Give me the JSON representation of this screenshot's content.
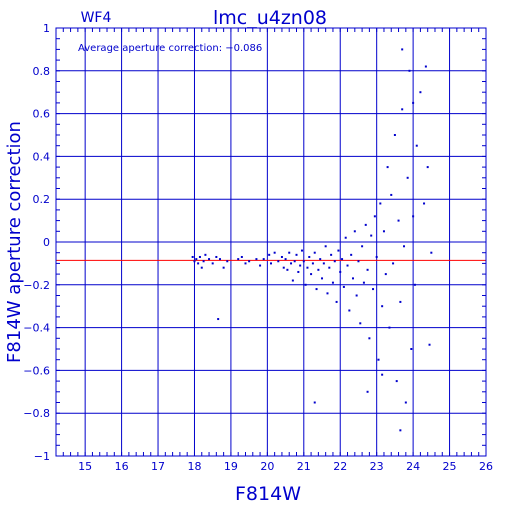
{
  "chart_data": {
    "type": "scatter",
    "title": "lmc_u4zn08",
    "subtitle": "WF4",
    "annotation": "Average aperture correction: −0.086",
    "xlabel": "F814W",
    "ylabel": "F814W aperture correction",
    "xlim": [
      14.2,
      26
    ],
    "ylim": [
      -1,
      1
    ],
    "xticks": [
      15,
      16,
      17,
      18,
      19,
      20,
      21,
      22,
      23,
      24,
      25,
      26
    ],
    "yticks": [
      -1,
      -0.8,
      -0.6,
      -0.4,
      -0.2,
      0,
      0.2,
      0.4,
      0.6,
      0.8,
      1
    ],
    "xtick_labels": [
      "15",
      "16",
      "17",
      "18",
      "19",
      "20",
      "21",
      "22",
      "23",
      "24",
      "25",
      "26"
    ],
    "ytick_labels": [
      "−1",
      "−0.8",
      "−0.6",
      "−0.4",
      "−0.2",
      "0",
      "0.2",
      "0.4",
      "0.6",
      "0.8",
      "1"
    ],
    "grid": true,
    "reference_line": {
      "y": -0.086,
      "color": "#ff0000"
    },
    "colors": {
      "axes": "#0000cc",
      "points": "#0000cc",
      "reference": "#ff0000"
    },
    "points": [
      [
        17.95,
        -0.07
      ],
      [
        18.0,
        -0.09
      ],
      [
        18.05,
        -0.08
      ],
      [
        18.1,
        -0.1
      ],
      [
        18.15,
        -0.07
      ],
      [
        18.2,
        -0.12
      ],
      [
        18.25,
        -0.09
      ],
      [
        18.3,
        -0.06
      ],
      [
        18.4,
        -0.08
      ],
      [
        18.5,
        -0.1
      ],
      [
        18.6,
        -0.07
      ],
      [
        18.7,
        -0.08
      ],
      [
        18.8,
        -0.12
      ],
      [
        18.9,
        -0.09
      ],
      [
        18.65,
        -0.36
      ],
      [
        19.2,
        -0.08
      ],
      [
        19.3,
        -0.07
      ],
      [
        19.4,
        -0.1
      ],
      [
        19.5,
        -0.09
      ],
      [
        19.7,
        -0.08
      ],
      [
        19.8,
        -0.11
      ],
      [
        19.9,
        -0.08
      ],
      [
        20.05,
        -0.06
      ],
      [
        20.1,
        -0.1
      ],
      [
        20.2,
        -0.05
      ],
      [
        20.3,
        -0.09
      ],
      [
        20.4,
        -0.07
      ],
      [
        20.45,
        -0.12
      ],
      [
        20.5,
        -0.08
      ],
      [
        20.55,
        -0.13
      ],
      [
        20.6,
        -0.05
      ],
      [
        20.65,
        -0.1
      ],
      [
        20.7,
        -0.18
      ],
      [
        20.75,
        -0.09
      ],
      [
        20.8,
        -0.06
      ],
      [
        20.85,
        -0.14
      ],
      [
        20.9,
        -0.11
      ],
      [
        20.95,
        -0.04
      ],
      [
        21.0,
        -0.09
      ],
      [
        21.05,
        -0.2
      ],
      [
        21.1,
        -0.12
      ],
      [
        21.15,
        -0.07
      ],
      [
        21.2,
        -0.15
      ],
      [
        21.25,
        -0.1
      ],
      [
        21.3,
        -0.05
      ],
      [
        21.35,
        -0.22
      ],
      [
        21.4,
        -0.13
      ],
      [
        21.45,
        -0.08
      ],
      [
        21.5,
        -0.17
      ],
      [
        21.55,
        -0.1
      ],
      [
        21.6,
        -0.02
      ],
      [
        21.65,
        -0.24
      ],
      [
        21.7,
        -0.12
      ],
      [
        21.75,
        -0.06
      ],
      [
        21.8,
        -0.19
      ],
      [
        21.85,
        -0.09
      ],
      [
        21.9,
        -0.28
      ],
      [
        21.95,
        -0.04
      ],
      [
        22.0,
        -0.14
      ],
      [
        22.05,
        -0.08
      ],
      [
        22.1,
        -0.21
      ],
      [
        22.15,
        0.02
      ],
      [
        22.2,
        -0.11
      ],
      [
        22.25,
        -0.32
      ],
      [
        22.3,
        -0.06
      ],
      [
        22.35,
        -0.17
      ],
      [
        22.4,
        0.05
      ],
      [
        22.45,
        -0.25
      ],
      [
        22.5,
        -0.09
      ],
      [
        22.55,
        -0.38
      ],
      [
        22.6,
        -0.02
      ],
      [
        22.65,
        -0.19
      ],
      [
        22.7,
        0.08
      ],
      [
        22.75,
        -0.13
      ],
      [
        22.8,
        -0.45
      ],
      [
        22.85,
        0.03
      ],
      [
        22.9,
        -0.22
      ],
      [
        22.95,
        0.12
      ],
      [
        23.0,
        -0.07
      ],
      [
        23.05,
        -0.55
      ],
      [
        23.1,
        0.18
      ],
      [
        23.15,
        -0.3
      ],
      [
        23.2,
        0.05
      ],
      [
        23.25,
        -0.15
      ],
      [
        23.3,
        0.35
      ],
      [
        23.35,
        -0.4
      ],
      [
        23.4,
        0.22
      ],
      [
        23.45,
        -0.1
      ],
      [
        23.5,
        0.5
      ],
      [
        23.55,
        -0.65
      ],
      [
        23.6,
        0.1
      ],
      [
        23.65,
        -0.28
      ],
      [
        23.7,
        0.62
      ],
      [
        23.75,
        -0.02
      ],
      [
        23.8,
        -0.75
      ],
      [
        23.85,
        0.3
      ],
      [
        23.9,
        0.8
      ],
      [
        23.95,
        -0.5
      ],
      [
        24.0,
        0.12
      ],
      [
        24.05,
        -0.2
      ],
      [
        24.1,
        0.45
      ],
      [
        24.2,
        0.7
      ],
      [
        24.3,
        0.18
      ],
      [
        24.35,
        0.82
      ],
      [
        24.4,
        0.35
      ],
      [
        24.45,
        -0.48
      ],
      [
        24.5,
        -0.05
      ],
      [
        24.0,
        0.65
      ],
      [
        23.7,
        0.9
      ],
      [
        23.65,
        -0.88
      ],
      [
        23.15,
        -0.62
      ],
      [
        22.75,
        -0.7
      ],
      [
        21.3,
        -0.75
      ]
    ]
  }
}
